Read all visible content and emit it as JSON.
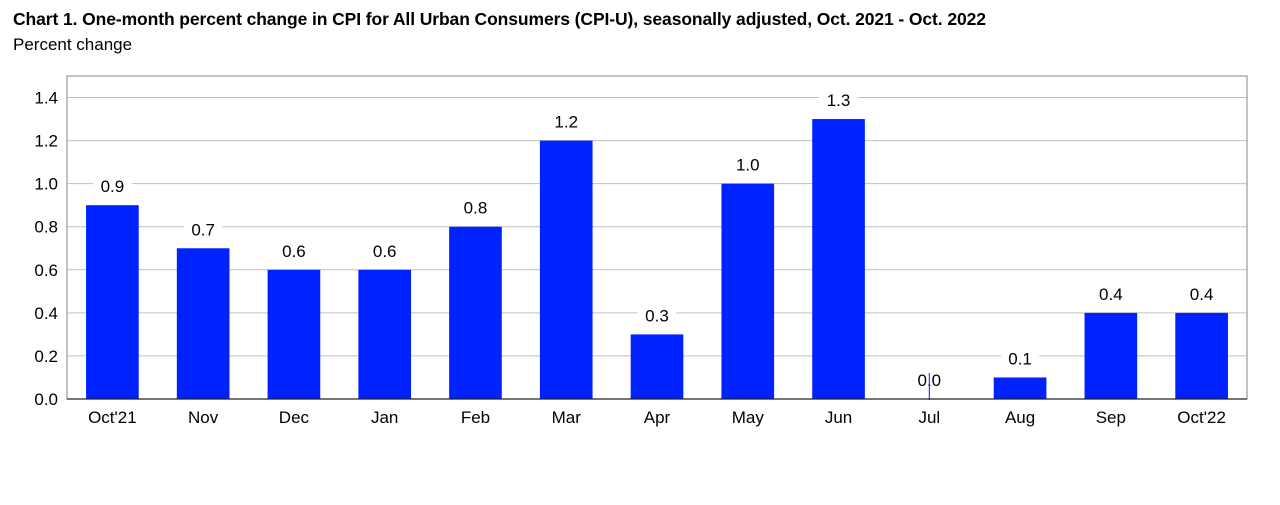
{
  "chart_data": {
    "type": "bar",
    "title": "Chart 1. One-month percent change in CPI for All Urban Consumers (CPI-U), seasonally adjusted, Oct. 2021 - Oct. 2022",
    "subtitle": "Percent change",
    "xlabel": "",
    "ylabel": "",
    "ylim": [
      0,
      1.5
    ],
    "yticks": [
      "0.0",
      "0.2",
      "0.4",
      "0.6",
      "0.8",
      "1.0",
      "1.2",
      "1.4"
    ],
    "categories": [
      "Oct'21",
      "Nov",
      "Dec",
      "Jan",
      "Feb",
      "Mar",
      "Apr",
      "May",
      "Jun",
      "Jul",
      "Aug",
      "Sep",
      "Oct'22"
    ],
    "values": [
      0.9,
      0.7,
      0.6,
      0.6,
      0.8,
      1.2,
      0.3,
      1.0,
      1.3,
      0.0,
      0.1,
      0.4,
      0.4
    ],
    "data_labels": [
      "0.9",
      "0.7",
      "0.6",
      "0.6",
      "0.8",
      "1.2",
      "0.3",
      "1.0",
      "1.3",
      "0.0",
      "0.1",
      "0.4",
      "0.4"
    ],
    "grid": true,
    "legend": "none",
    "bar_color": "#0022ff"
  }
}
